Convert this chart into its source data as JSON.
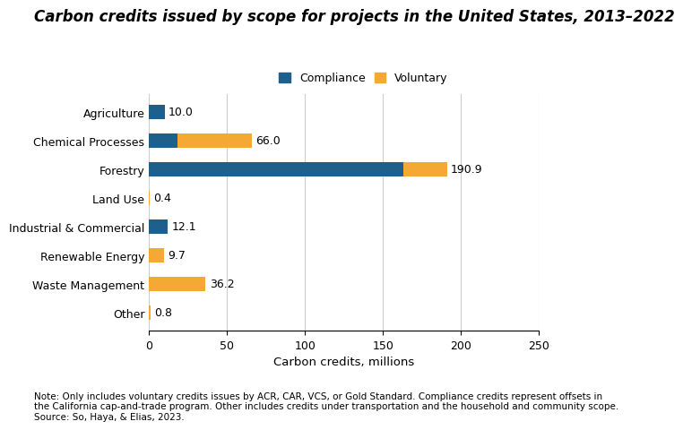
{
  "title": "Carbon credits issued by scope for projects in the United States, 2013–2022",
  "categories": [
    "Other",
    "Waste Management",
    "Renewable Energy",
    "Industrial & Commercial",
    "Land Use",
    "Forestry",
    "Chemical Processes",
    "Agriculture"
  ],
  "compliance": [
    0.0,
    0.0,
    0.0,
    12.1,
    0.0,
    163.0,
    18.0,
    10.0
  ],
  "voluntary": [
    0.8,
    36.2,
    9.7,
    0.0,
    0.4,
    27.9,
    48.0,
    0.0
  ],
  "totals": [
    0.8,
    36.2,
    9.7,
    12.1,
    0.4,
    190.9,
    66.0,
    10.0
  ],
  "compliance_color": "#1F5F8B",
  "voluntary_color": "#F5A833",
  "xlabel": "Carbon credits, millions",
  "xlim": [
    0,
    250
  ],
  "xticks": [
    0,
    50,
    100,
    150,
    200,
    250
  ],
  "note": "Note: Only includes voluntary credits issues by ACR, CAR, VCS, or Gold Standard. Compliance credits represent offsets in\nthe California cap-and-trade program. Other includes credits under transportation and the household and community scope.\nSource: So, Haya, & Elias, 2023.",
  "legend_compliance": "Compliance",
  "legend_voluntary": "Voluntary",
  "background_color": "#FFFFFF",
  "grid_color": "#CCCCCC",
  "title_fontsize": 12,
  "label_fontsize": 9,
  "note_fontsize": 7.5
}
